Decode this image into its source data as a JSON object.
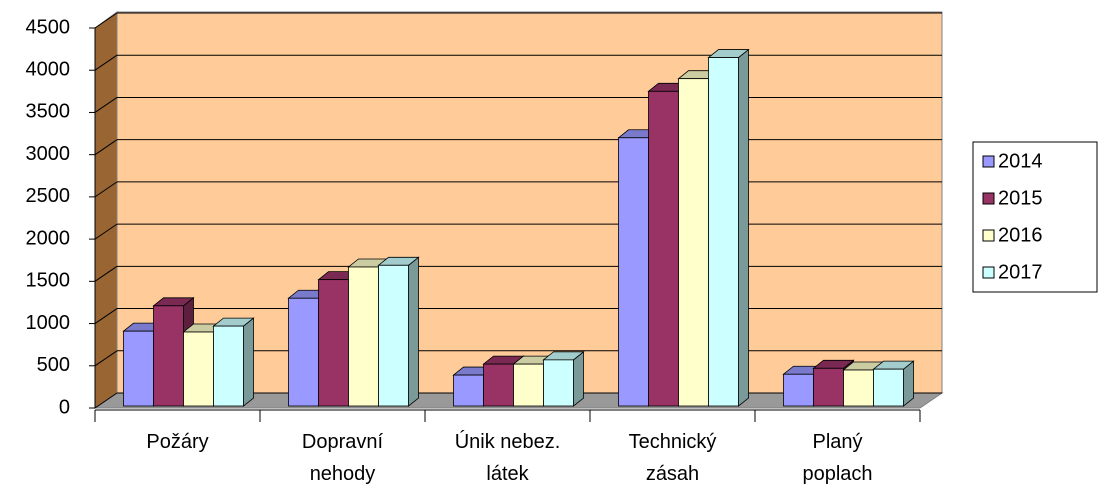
{
  "chart_data": {
    "type": "bar3d",
    "categories": [
      [
        "Požáry"
      ],
      [
        "Dopravní",
        "nehody"
      ],
      [
        "Únik nebez.",
        "látek"
      ],
      [
        "Technický",
        "zásah"
      ],
      [
        "Planý",
        "poplach"
      ]
    ],
    "series": [
      {
        "name": "2014",
        "color": "#9999ff",
        "values": [
          910,
          1300,
          390,
          3200,
          400
        ]
      },
      {
        "name": "2015",
        "color": "#993366",
        "values": [
          1210,
          1520,
          520,
          3750,
          470
        ]
      },
      {
        "name": "2016",
        "color": "#ffffcc",
        "values": [
          900,
          1670,
          520,
          3900,
          450
        ]
      },
      {
        "name": "2017",
        "color": "#ccffff",
        "values": [
          970,
          1690,
          570,
          4150,
          460
        ]
      }
    ],
    "ylim": [
      0,
      4500
    ],
    "yticks": [
      0,
      500,
      1000,
      1500,
      2000,
      2500,
      3000,
      3500,
      4000,
      4500
    ],
    "grid": true,
    "legend": "right"
  }
}
